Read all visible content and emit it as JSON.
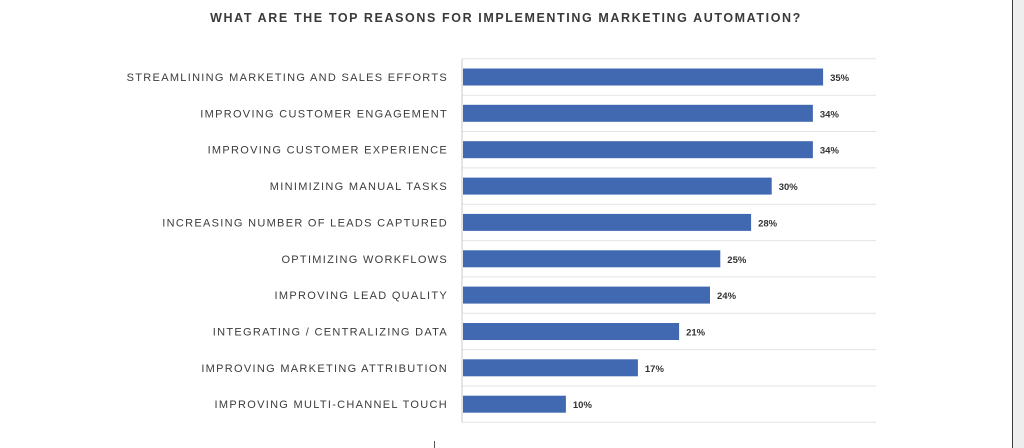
{
  "chart_data": {
    "type": "bar",
    "orientation": "horizontal",
    "title": "WHAT ARE THE TOP REASONS FOR IMPLEMENTING MARKETING AUTOMATION?",
    "categories": [
      "STREAMLINING MARKETING AND SALES EFFORTS",
      "IMPROVING CUSTOMER ENGAGEMENT",
      "IMPROVING CUSTOMER EXPERIENCE",
      "MINIMIZING MANUAL TASKS",
      "INCREASING NUMBER OF LEADS CAPTURED",
      "OPTIMIZING WORKFLOWS",
      "IMPROVING LEAD QUALITY",
      "INTEGRATING / CENTRALIZING DATA",
      "IMPROVING MARKETING ATTRIBUTION",
      "IMPROVING MULTI-CHANNEL TOUCH"
    ],
    "values": [
      35,
      34,
      34,
      30,
      28,
      25,
      24,
      21,
      17,
      10
    ],
    "value_labels": [
      "35%",
      "34%",
      "34%",
      "30%",
      "28%",
      "25%",
      "24%",
      "21%",
      "17%",
      "10%"
    ],
    "xlabel": "",
    "ylabel": "",
    "xlim": [
      0,
      40
    ],
    "grid": "horizontal-separators",
    "legend": "none",
    "bar_color": "#4169b2",
    "grid_color": "#e3e3e3",
    "axis_color": "#c8c8c8"
  }
}
